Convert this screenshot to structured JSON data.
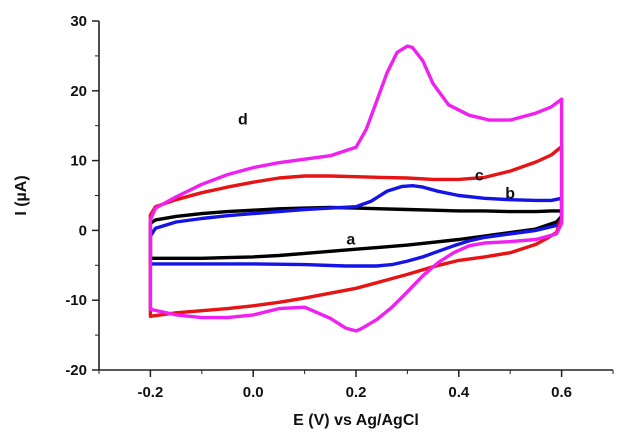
{
  "chart_data": {
    "type": "line",
    "title": "",
    "xlabel": "E (V) vs Ag/AgCl",
    "ylabel": "I (µA)",
    "xlim": [
      -0.3,
      0.7
    ],
    "ylim": [
      -20,
      30
    ],
    "xticks": [
      "-0.2",
      "0.0",
      "0.2",
      "0.4",
      "0.6"
    ],
    "xtick_values": [
      -0.2,
      0.0,
      0.2,
      0.4,
      0.6
    ],
    "yticks": [
      "-20",
      "-10",
      "0",
      "10",
      "20",
      "30"
    ],
    "ytick_values": [
      -20,
      -10,
      0,
      10,
      20,
      30
    ],
    "grid": false,
    "legend": "none",
    "series": [
      {
        "label": "a",
        "color": "#000000",
        "label_pos": [
          0.19,
          -1.3
        ],
        "x": [
          -0.2,
          -0.19,
          -0.15,
          -0.1,
          -0.05,
          0.0,
          0.05,
          0.1,
          0.15,
          0.2,
          0.25,
          0.3,
          0.35,
          0.4,
          0.45,
          0.5,
          0.55,
          0.58,
          0.6,
          0.6,
          0.59,
          0.55,
          0.5,
          0.45,
          0.4,
          0.35,
          0.3,
          0.25,
          0.2,
          0.15,
          0.1,
          0.05,
          0.0,
          -0.05,
          -0.1,
          -0.15,
          -0.2
        ],
        "y": [
          1.0,
          1.5,
          2.0,
          2.4,
          2.7,
          2.9,
          3.1,
          3.2,
          3.3,
          3.2,
          3.1,
          3.0,
          2.9,
          2.8,
          2.8,
          2.7,
          2.7,
          2.8,
          2.8,
          2.0,
          1.2,
          0.2,
          -0.3,
          -0.8,
          -1.3,
          -1.7,
          -2.1,
          -2.4,
          -2.7,
          -3.0,
          -3.3,
          -3.6,
          -3.8,
          -3.9,
          -4.0,
          -4.0,
          -4.0
        ]
      },
      {
        "label": "b",
        "color": "#1414e6",
        "label_pos": [
          0.5,
          5.3
        ],
        "x": [
          -0.2,
          -0.19,
          -0.15,
          -0.1,
          -0.05,
          0.0,
          0.05,
          0.1,
          0.15,
          0.2,
          0.23,
          0.26,
          0.29,
          0.31,
          0.33,
          0.36,
          0.4,
          0.45,
          0.5,
          0.55,
          0.58,
          0.6,
          0.6,
          0.59,
          0.55,
          0.5,
          0.45,
          0.42,
          0.39,
          0.36,
          0.33,
          0.3,
          0.27,
          0.24,
          0.21,
          0.18,
          0.1,
          0.0,
          -0.1,
          -0.2
        ],
        "y": [
          -0.8,
          0.3,
          1.2,
          1.7,
          2.1,
          2.4,
          2.7,
          3.0,
          3.2,
          3.4,
          4.2,
          5.6,
          6.3,
          6.4,
          6.2,
          5.6,
          5.0,
          4.6,
          4.4,
          4.3,
          4.3,
          4.6,
          1.5,
          0.7,
          0.0,
          -0.5,
          -1.0,
          -1.5,
          -2.2,
          -3.0,
          -3.8,
          -4.4,
          -4.9,
          -5.1,
          -5.1,
          -5.1,
          -4.9,
          -4.8,
          -4.8,
          -4.8
        ]
      },
      {
        "label": "c",
        "color": "#e61414",
        "label_pos": [
          0.44,
          7.9
        ],
        "x": [
          -0.2,
          -0.19,
          -0.15,
          -0.1,
          -0.05,
          0.0,
          0.05,
          0.1,
          0.15,
          0.2,
          0.25,
          0.3,
          0.35,
          0.4,
          0.45,
          0.5,
          0.55,
          0.58,
          0.6,
          0.6,
          0.59,
          0.57,
          0.55,
          0.5,
          0.45,
          0.4,
          0.35,
          0.3,
          0.25,
          0.2,
          0.15,
          0.1,
          0.05,
          0.0,
          -0.05,
          -0.1,
          -0.15,
          -0.2
        ],
        "y": [
          2.2,
          3.4,
          4.4,
          5.4,
          6.2,
          6.9,
          7.5,
          7.8,
          7.8,
          7.7,
          7.6,
          7.5,
          7.3,
          7.3,
          7.6,
          8.5,
          9.8,
          10.8,
          12.0,
          1.8,
          -0.3,
          -1.2,
          -2.0,
          -3.2,
          -3.8,
          -4.3,
          -5.2,
          -6.3,
          -7.3,
          -8.3,
          -9.0,
          -9.7,
          -10.3,
          -10.8,
          -11.2,
          -11.5,
          -11.8,
          -12.3
        ]
      },
      {
        "label": "d",
        "color": "#f020f0",
        "label_pos": [
          -0.02,
          15.9
        ],
        "x": [
          -0.2,
          -0.19,
          -0.15,
          -0.1,
          -0.05,
          0.0,
          0.05,
          0.1,
          0.15,
          0.2,
          0.22,
          0.24,
          0.26,
          0.28,
          0.3,
          0.31,
          0.33,
          0.35,
          0.38,
          0.42,
          0.46,
          0.5,
          0.55,
          0.58,
          0.6,
          0.6,
          0.59,
          0.55,
          0.5,
          0.45,
          0.42,
          0.39,
          0.36,
          0.33,
          0.3,
          0.27,
          0.24,
          0.21,
          0.2,
          0.18,
          0.15,
          0.1,
          0.05,
          0.0,
          -0.05,
          -0.1,
          -0.15,
          -0.2
        ],
        "y": [
          1.5,
          3.2,
          4.8,
          6.6,
          8.0,
          9.0,
          9.7,
          10.2,
          10.7,
          11.9,
          14.5,
          18.5,
          22.5,
          25.5,
          26.4,
          26.2,
          24.3,
          21.0,
          18.0,
          16.5,
          15.8,
          15.8,
          16.8,
          17.7,
          18.8,
          1.0,
          -0.5,
          -1.3,
          -1.6,
          -1.8,
          -2.2,
          -3.2,
          -4.6,
          -6.5,
          -8.8,
          -11.0,
          -12.8,
          -14.1,
          -14.4,
          -14.0,
          -12.6,
          -11.0,
          -11.2,
          -12.1,
          -12.5,
          -12.5,
          -12.1,
          -11.3
        ]
      }
    ]
  }
}
